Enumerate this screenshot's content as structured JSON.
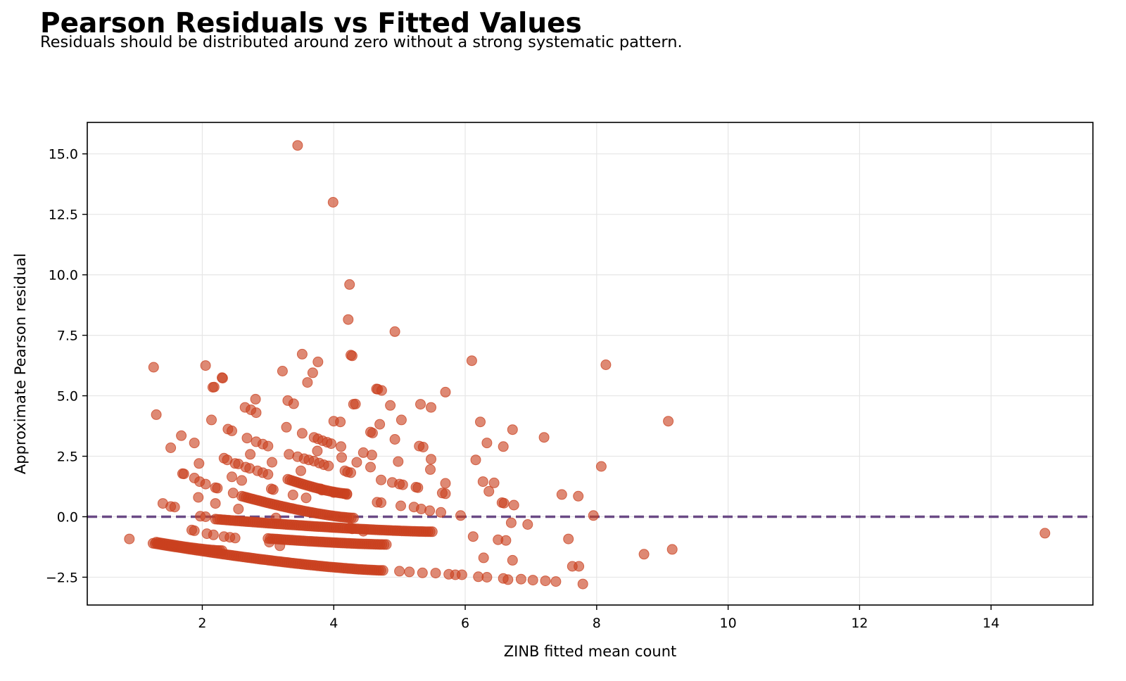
{
  "header": {
    "title": "Pearson Residuals vs Fitted Values",
    "subtitle": "Residuals should be distributed around zero without a strong systematic pattern."
  },
  "colors": {
    "points": "#c9401f",
    "reference_line": "#6a4a85",
    "grid": "#e6e6e6",
    "frame": "#000000"
  },
  "chart_data": {
    "type": "scatter",
    "title": "Pearson Residuals vs Fitted Values",
    "subtitle": "Residuals should be distributed around zero without a strong systematic pattern.",
    "xlabel": "ZINB fitted mean count",
    "ylabel": "Approximate Pearson residual",
    "xlim": [
      0.25,
      15.55
    ],
    "ylim": [
      -3.65,
      16.3
    ],
    "xticks": [
      2,
      4,
      6,
      8,
      10,
      12,
      14
    ],
    "xtick_labels": [
      "2",
      "4",
      "6",
      "8",
      "10",
      "12",
      "14"
    ],
    "yticks": [
      -2.5,
      0.0,
      2.5,
      5.0,
      7.5,
      10.0,
      12.5,
      15.0
    ],
    "ytick_labels": [
      "−2.5",
      "0.0",
      "2.5",
      "5.0",
      "7.5",
      "10.0",
      "12.5",
      "15.0"
    ],
    "grid": true,
    "reference_line": {
      "y": 0.0,
      "style": "dashed"
    },
    "bands": [
      {
        "x": [
          1.25,
          4.75
        ],
        "y": [
          -1.1,
          -2.22
        ]
      },
      {
        "x": [
          2.2,
          5.5
        ],
        "y": [
          -0.1,
          -0.62
        ]
      },
      {
        "x": [
          2.6,
          4.3
        ],
        "y": [
          0.85,
          -0.05
        ]
      },
      {
        "x": [
          3.3,
          4.2
        ],
        "y": [
          1.55,
          0.95
        ]
      },
      {
        "x": [
          1.3,
          2.3
        ],
        "y": [
          -1.05,
          -1.4
        ]
      },
      {
        "x": [
          3.0,
          4.8
        ],
        "y": [
          -0.9,
          -1.15
        ]
      }
    ],
    "series": [
      {
        "marker": "circle",
        "points": [
          [
            3.45,
            15.35
          ],
          [
            3.99,
            13.0
          ],
          [
            4.24,
            9.6
          ],
          [
            4.22,
            8.15
          ],
          [
            4.93,
            7.65
          ],
          [
            3.52,
            6.72
          ],
          [
            3.76,
            6.4
          ],
          [
            4.26,
            6.68
          ],
          [
            4.28,
            6.65
          ],
          [
            6.1,
            6.45
          ],
          [
            8.14,
            6.28
          ],
          [
            1.26,
            6.18
          ],
          [
            2.05,
            6.25
          ],
          [
            3.22,
            6.02
          ],
          [
            3.68,
            5.95
          ],
          [
            2.3,
            5.75
          ],
          [
            2.31,
            5.73
          ],
          [
            2.16,
            5.35
          ],
          [
            2.18,
            5.36
          ],
          [
            3.6,
            5.55
          ],
          [
            4.65,
            5.28
          ],
          [
            4.67,
            5.27
          ],
          [
            4.73,
            5.22
          ],
          [
            5.7,
            5.15
          ],
          [
            3.3,
            4.8
          ],
          [
            3.39,
            4.67
          ],
          [
            2.81,
            4.86
          ],
          [
            4.3,
            4.65
          ],
          [
            4.33,
            4.66
          ],
          [
            4.86,
            4.6
          ],
          [
            5.32,
            4.65
          ],
          [
            5.48,
            4.52
          ],
          [
            2.65,
            4.52
          ],
          [
            2.74,
            4.42
          ],
          [
            2.82,
            4.3
          ],
          [
            1.3,
            4.22
          ],
          [
            2.14,
            4.0
          ],
          [
            4.0,
            3.95
          ],
          [
            4.1,
            3.92
          ],
          [
            5.03,
            4.0
          ],
          [
            9.09,
            3.95
          ],
          [
            6.23,
            3.92
          ],
          [
            4.7,
            3.82
          ],
          [
            3.28,
            3.7
          ],
          [
            2.39,
            3.62
          ],
          [
            2.45,
            3.55
          ],
          [
            6.72,
            3.6
          ],
          [
            4.56,
            3.5
          ],
          [
            4.59,
            3.46
          ],
          [
            3.52,
            3.45
          ],
          [
            1.68,
            3.35
          ],
          [
            7.2,
            3.28
          ],
          [
            3.7,
            3.28
          ],
          [
            3.76,
            3.22
          ],
          [
            3.83,
            3.14
          ],
          [
            3.9,
            3.08
          ],
          [
            3.96,
            3.02
          ],
          [
            2.68,
            3.25
          ],
          [
            2.82,
            3.1
          ],
          [
            2.92,
            3.0
          ],
          [
            3.0,
            2.92
          ],
          [
            4.93,
            3.2
          ],
          [
            1.88,
            3.05
          ],
          [
            6.33,
            3.05
          ],
          [
            6.58,
            2.9
          ],
          [
            5.3,
            2.92
          ],
          [
            5.36,
            2.88
          ],
          [
            4.11,
            2.9
          ],
          [
            1.52,
            2.85
          ],
          [
            3.75,
            2.72
          ],
          [
            4.45,
            2.65
          ],
          [
            3.32,
            2.58
          ],
          [
            2.73,
            2.58
          ],
          [
            4.58,
            2.55
          ],
          [
            3.45,
            2.48
          ],
          [
            3.55,
            2.4
          ],
          [
            3.62,
            2.35
          ],
          [
            3.7,
            2.3
          ],
          [
            3.78,
            2.22
          ],
          [
            3.85,
            2.15
          ],
          [
            3.92,
            2.1
          ],
          [
            2.33,
            2.42
          ],
          [
            2.38,
            2.35
          ],
          [
            4.12,
            2.45
          ],
          [
            5.48,
            2.38
          ],
          [
            6.16,
            2.35
          ],
          [
            4.35,
            2.25
          ],
          [
            4.98,
            2.28
          ],
          [
            3.06,
            2.25
          ],
          [
            1.95,
            2.2
          ],
          [
            2.5,
            2.2
          ],
          [
            2.55,
            2.18
          ],
          [
            4.56,
            2.05
          ],
          [
            2.66,
            2.05
          ],
          [
            2.72,
            2.0
          ],
          [
            8.07,
            2.08
          ],
          [
            5.47,
            1.95
          ],
          [
            3.5,
            1.9
          ],
          [
            4.17,
            1.9
          ],
          [
            4.21,
            1.85
          ],
          [
            4.26,
            1.82
          ],
          [
            2.84,
            1.9
          ],
          [
            2.92,
            1.82
          ],
          [
            3.0,
            1.75
          ],
          [
            1.7,
            1.78
          ],
          [
            1.72,
            1.77
          ],
          [
            1.88,
            1.6
          ],
          [
            2.6,
            1.5
          ],
          [
            2.45,
            1.65
          ],
          [
            4.72,
            1.52
          ],
          [
            4.89,
            1.42
          ],
          [
            5.0,
            1.35
          ],
          [
            5.05,
            1.32
          ],
          [
            6.27,
            1.45
          ],
          [
            6.44,
            1.4
          ],
          [
            5.7,
            1.38
          ],
          [
            1.96,
            1.45
          ],
          [
            2.05,
            1.35
          ],
          [
            5.25,
            1.22
          ],
          [
            5.28,
            1.2
          ],
          [
            2.2,
            1.2
          ],
          [
            2.23,
            1.18
          ],
          [
            3.05,
            1.15
          ],
          [
            3.08,
            1.12
          ],
          [
            3.8,
            1.15
          ],
          [
            3.82,
            1.1
          ],
          [
            4.0,
            1.0
          ],
          [
            4.16,
            0.95
          ],
          [
            4.2,
            0.92
          ],
          [
            6.36,
            1.05
          ],
          [
            5.65,
            0.98
          ],
          [
            5.7,
            0.95
          ],
          [
            2.47,
            0.98
          ],
          [
            7.47,
            0.92
          ],
          [
            7.72,
            0.85
          ],
          [
            3.38,
            0.9
          ],
          [
            1.94,
            0.8
          ],
          [
            3.58,
            0.78
          ],
          [
            6.56,
            0.58
          ],
          [
            6.59,
            0.56
          ],
          [
            4.66,
            0.6
          ],
          [
            4.72,
            0.58
          ],
          [
            6.74,
            0.48
          ],
          [
            1.4,
            0.55
          ],
          [
            2.2,
            0.55
          ],
          [
            5.02,
            0.45
          ],
          [
            5.22,
            0.4
          ],
          [
            5.33,
            0.32
          ],
          [
            1.52,
            0.42
          ],
          [
            1.58,
            0.4
          ],
          [
            2.55,
            0.32
          ],
          [
            5.46,
            0.25
          ],
          [
            5.63,
            0.18
          ],
          [
            5.93,
            0.05
          ],
          [
            7.95,
            0.05
          ],
          [
            1.97,
            0.02
          ],
          [
            2.05,
            0.0
          ],
          [
            3.12,
            -0.05
          ],
          [
            6.7,
            -0.25
          ],
          [
            6.95,
            -0.32
          ],
          [
            4.25,
            -0.45
          ],
          [
            4.28,
            -0.5
          ],
          [
            4.45,
            -0.6
          ],
          [
            1.84,
            -0.55
          ],
          [
            1.88,
            -0.58
          ],
          [
            2.07,
            -0.7
          ],
          [
            2.17,
            -0.75
          ],
          [
            6.12,
            -0.82
          ],
          [
            2.33,
            -0.82
          ],
          [
            2.42,
            -0.85
          ],
          [
            2.5,
            -0.88
          ],
          [
            6.5,
            -0.95
          ],
          [
            6.62,
            -0.98
          ],
          [
            7.57,
            -0.92
          ],
          [
            0.89,
            -0.92
          ],
          [
            3.02,
            -1.05
          ],
          [
            3.18,
            -1.2
          ],
          [
            8.72,
            -1.55
          ],
          [
            9.15,
            -1.35
          ],
          [
            6.72,
            -1.8
          ],
          [
            6.28,
            -1.7
          ],
          [
            7.63,
            -2.05
          ],
          [
            7.73,
            -2.05
          ],
          [
            6.2,
            -2.48
          ],
          [
            6.33,
            -2.5
          ],
          [
            6.58,
            -2.55
          ],
          [
            6.65,
            -2.6
          ],
          [
            6.85,
            -2.58
          ],
          [
            7.03,
            -2.62
          ],
          [
            7.22,
            -2.65
          ],
          [
            7.38,
            -2.68
          ],
          [
            7.79,
            -2.78
          ],
          [
            5.0,
            -2.25
          ],
          [
            5.15,
            -2.28
          ],
          [
            5.35,
            -2.32
          ],
          [
            5.55,
            -2.33
          ],
          [
            5.75,
            -2.38
          ],
          [
            5.85,
            -2.4
          ],
          [
            5.95,
            -2.4
          ],
          [
            14.82,
            -0.68
          ]
        ]
      }
    ]
  }
}
